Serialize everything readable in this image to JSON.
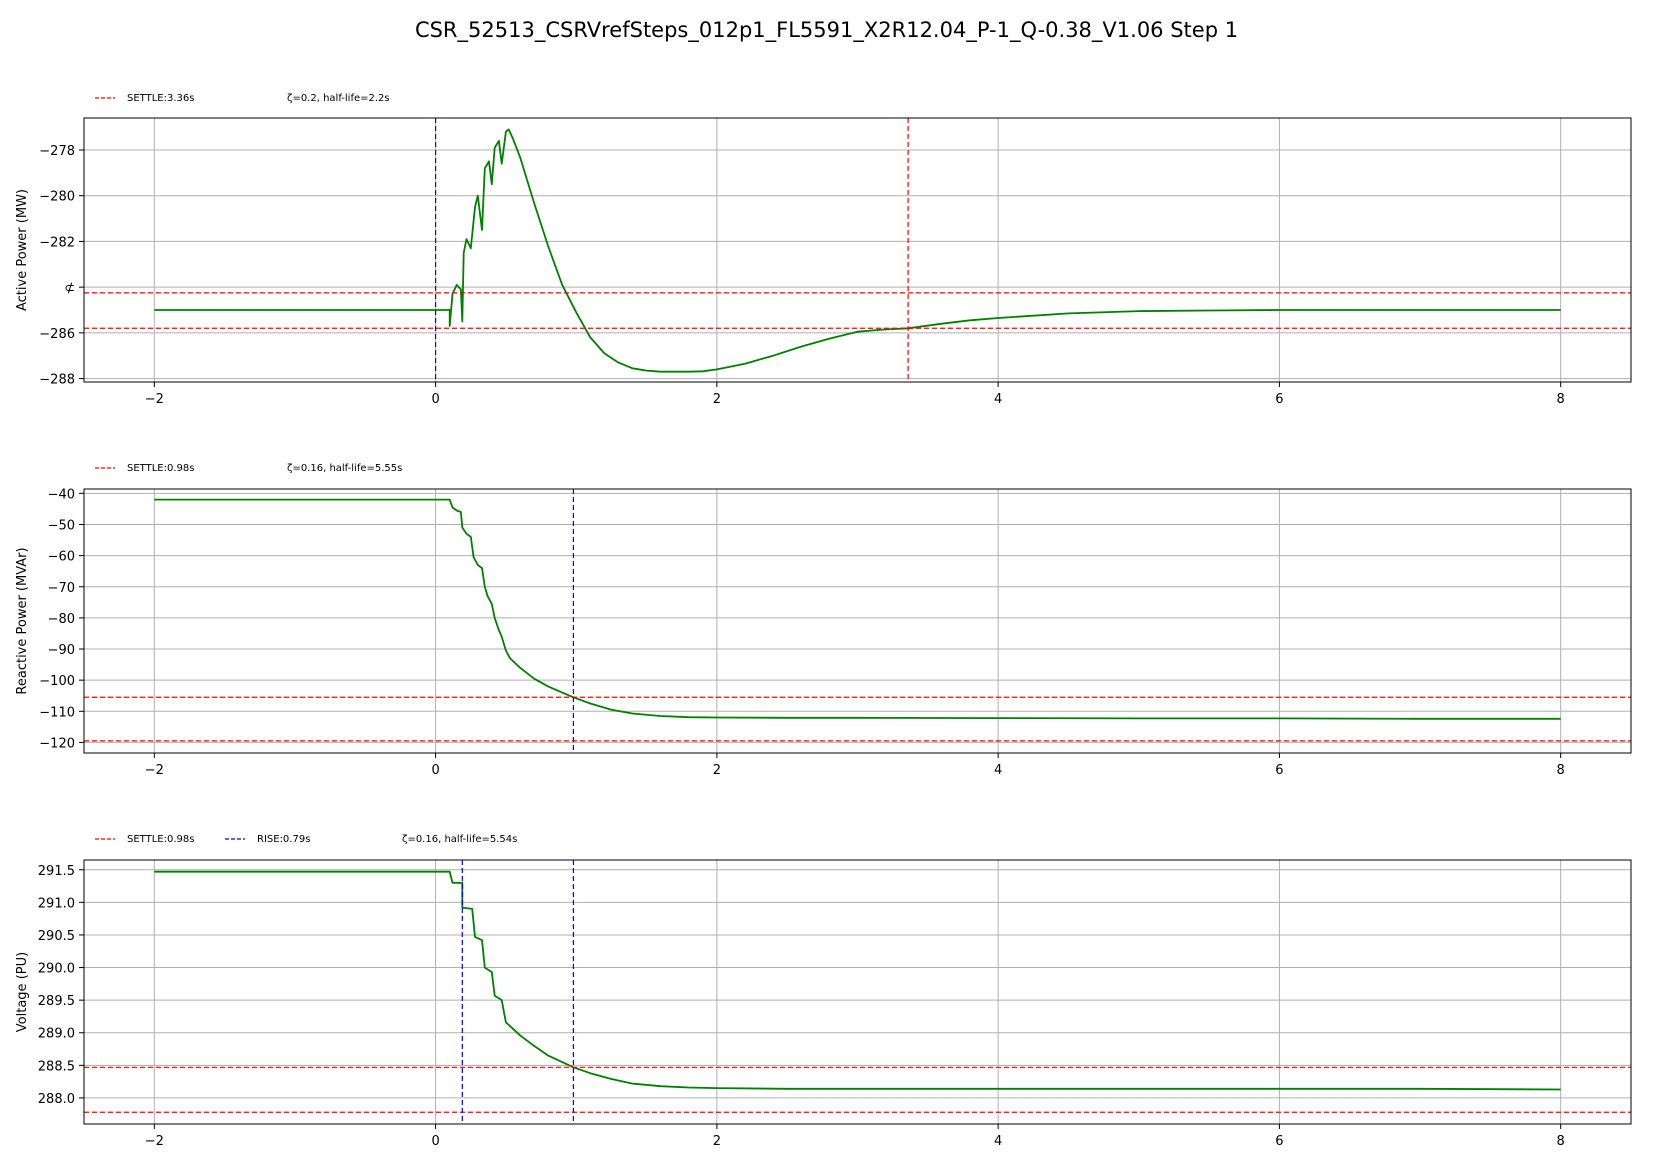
{
  "figure": {
    "title": "CSR_52513_CSRVrefSteps_012p1_FL5591_X2R12.04_P-1_Q-0.38_V1.06 Step 1"
  },
  "colors": {
    "trace": "#008000",
    "settle": "#ff0000",
    "rise": "#0000ff",
    "grid": "#b0b0b0"
  },
  "chart_data": [
    {
      "type": "line",
      "title": "",
      "xlabel": "",
      "ylabel": "Active Power (MW)",
      "xlim": [
        -2.5,
        8.5
      ],
      "ylim": [
        -288.15,
        -276.6
      ],
      "xticks": [
        -2,
        0,
        2,
        4,
        6,
        8
      ],
      "xtick_labels": [
        "−2",
        "0",
        "2",
        "4",
        "6",
        "8"
      ],
      "yticks": [
        -278,
        -280,
        -282,
        -284,
        -286,
        -288
      ],
      "ytick_labels": [
        "−278",
        "−280",
        "−282",
        "⊄",
        "−286",
        "−288"
      ],
      "grid": true,
      "legend": [
        {
          "label": "SETTLE:3.36s",
          "color": "#ff0000",
          "style": "dashed"
        },
        {
          "label": "ζ=0.2, half-life=2.2s",
          "style": "none"
        }
      ],
      "hlines": [
        -284.25,
        -285.8
      ],
      "vlines": [
        {
          "x": 0.0,
          "color": "#0000ff"
        },
        {
          "x": 3.36,
          "color": "#ff0000"
        }
      ],
      "series": [
        {
          "x": [
            -2,
            0,
            0.1,
            0.1,
            0.12,
            0.15,
            0.18,
            0.19,
            0.2,
            0.22,
            0.25,
            0.28,
            0.3,
            0.33,
            0.35,
            0.38,
            0.4,
            0.42,
            0.45,
            0.47,
            0.5,
            0.52,
            0.55,
            0.6,
            0.7,
            0.8,
            0.9,
            1.0,
            1.1,
            1.2,
            1.3,
            1.4,
            1.5,
            1.6,
            1.7,
            1.8,
            1.9,
            2.0,
            2.2,
            2.4,
            2.6,
            2.8,
            3.0,
            3.2,
            3.36,
            3.6,
            3.8,
            4.0,
            4.5,
            5.0,
            5.5,
            6.0,
            7.0,
            8.0
          ],
          "y": [
            -285.0,
            -285.0,
            -285.0,
            -285.7,
            -284.3,
            -283.9,
            -284.1,
            -285.5,
            -282.5,
            -281.9,
            -282.3,
            -280.5,
            -280.0,
            -281.5,
            -278.8,
            -278.5,
            -279.5,
            -277.9,
            -277.6,
            -278.6,
            -277.2,
            -277.1,
            -277.5,
            -278.3,
            -280.3,
            -282.2,
            -283.9,
            -285.1,
            -286.2,
            -286.9,
            -287.3,
            -287.55,
            -287.65,
            -287.7,
            -287.7,
            -287.7,
            -287.68,
            -287.6,
            -287.35,
            -287.0,
            -286.6,
            -286.25,
            -285.95,
            -285.85,
            -285.8,
            -285.6,
            -285.45,
            -285.35,
            -285.15,
            -285.05,
            -285.02,
            -285.0,
            -285.0,
            -285.0
          ]
        }
      ]
    },
    {
      "type": "line",
      "title": "",
      "xlabel": "",
      "ylabel": "Reactive Power (MVAr)",
      "xlim": [
        -2.5,
        8.5
      ],
      "ylim": [
        -123.4,
        -38.6
      ],
      "xticks": [
        -2,
        0,
        2,
        4,
        6,
        8
      ],
      "xtick_labels": [
        "−2",
        "0",
        "2",
        "4",
        "6",
        "8"
      ],
      "yticks": [
        -40,
        -50,
        -60,
        -70,
        -80,
        -90,
        -100,
        -110,
        -120
      ],
      "ytick_labels": [
        "−40",
        "−50",
        "−60",
        "−70",
        "−80",
        "−90",
        "−100",
        "−110",
        "−120"
      ],
      "grid": true,
      "legend": [
        {
          "label": "SETTLE:0.98s",
          "color": "#ff0000",
          "style": "dashed"
        },
        {
          "label": "ζ=0.16, half-life=5.55s",
          "style": "none"
        }
      ],
      "hlines": [
        -105.5,
        -119.5
      ],
      "vlines": [
        {
          "x": 0.98,
          "color": "#0000ff"
        }
      ],
      "series": [
        {
          "x": [
            -2,
            0,
            0.1,
            0.12,
            0.15,
            0.18,
            0.19,
            0.22,
            0.25,
            0.27,
            0.3,
            0.33,
            0.35,
            0.37,
            0.4,
            0.42,
            0.45,
            0.47,
            0.5,
            0.53,
            0.6,
            0.7,
            0.8,
            0.9,
            0.98,
            1.1,
            1.25,
            1.4,
            1.6,
            1.8,
            2.0,
            2.5,
            3.0,
            4.0,
            5.0,
            6.0,
            7.0,
            8.0
          ],
          "y": [
            -42.0,
            -42.0,
            -42.0,
            -44.5,
            -45.5,
            -46.0,
            -51.0,
            -53.0,
            -54.0,
            -60.5,
            -63.0,
            -64.0,
            -70.0,
            -73.0,
            -75.5,
            -80.0,
            -84.0,
            -86.0,
            -90.5,
            -93.0,
            -96.0,
            -99.5,
            -102.0,
            -104.0,
            -105.5,
            -107.5,
            -109.5,
            -110.7,
            -111.5,
            -111.9,
            -112.0,
            -112.1,
            -112.1,
            -112.2,
            -112.3,
            -112.3,
            -112.4,
            -112.4
          ]
        }
      ]
    },
    {
      "type": "line",
      "title": "",
      "xlabel": "",
      "ylabel": "Voltage (PU)",
      "xlim": [
        -2.5,
        8.5
      ],
      "ylim": [
        287.6,
        291.65
      ],
      "xticks": [
        -2,
        0,
        2,
        4,
        6,
        8
      ],
      "xtick_labels": [
        "−2",
        "0",
        "2",
        "4",
        "6",
        "8"
      ],
      "yticks": [
        291.5,
        291.0,
        290.5,
        290.0,
        289.5,
        289.0,
        288.5,
        288.0
      ],
      "ytick_labels": [
        "291.5",
        "291.0",
        "290.5",
        "290.0",
        "289.5",
        "289.0",
        "288.5",
        "288.0"
      ],
      "grid": true,
      "legend": [
        {
          "label": "SETTLE:0.98s",
          "color": "#ff0000",
          "style": "dashed"
        },
        {
          "label": "RISE:0.79s",
          "color": "#0000ff",
          "style": "dashed"
        },
        {
          "label": "ζ=0.16, half-life=5.54s",
          "style": "none"
        }
      ],
      "hlines": [
        288.47,
        287.78
      ],
      "vlines": [
        {
          "x": 0.19,
          "color": "#0000ff"
        },
        {
          "x": 0.98,
          "color": "#0000ff"
        }
      ],
      "series": [
        {
          "x": [
            -2,
            0,
            0.1,
            0.12,
            0.19,
            0.19,
            0.26,
            0.28,
            0.33,
            0.35,
            0.4,
            0.42,
            0.47,
            0.5,
            0.53,
            0.6,
            0.7,
            0.8,
            0.9,
            0.98,
            1.1,
            1.25,
            1.4,
            1.6,
            1.8,
            2.0,
            2.5,
            3.0,
            4.0,
            5.0,
            6.0,
            7.0,
            8.0
          ],
          "y": [
            291.47,
            291.47,
            291.47,
            291.3,
            291.3,
            290.92,
            290.9,
            290.47,
            290.42,
            290.0,
            289.93,
            289.57,
            289.5,
            289.16,
            289.1,
            288.96,
            288.8,
            288.65,
            288.55,
            288.47,
            288.38,
            288.29,
            288.22,
            288.18,
            288.16,
            288.15,
            288.14,
            288.14,
            288.14,
            288.14,
            288.14,
            288.14,
            288.13
          ]
        }
      ]
    }
  ]
}
